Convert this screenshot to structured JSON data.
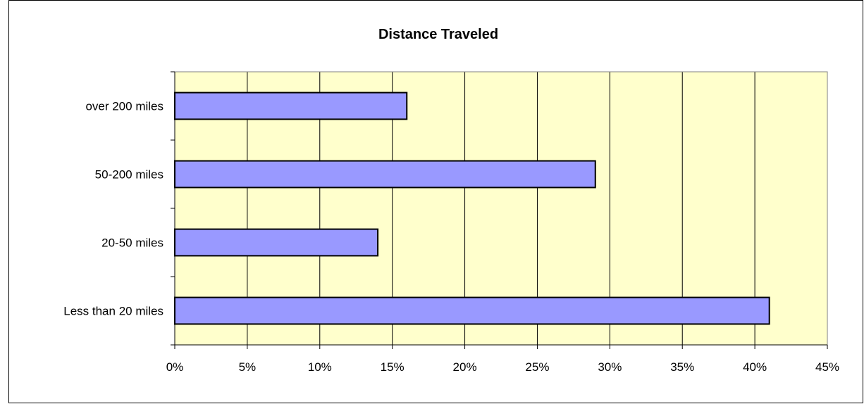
{
  "chart_data": {
    "type": "bar",
    "orientation": "horizontal",
    "title": "Distance Traveled",
    "xlabel": "",
    "ylabel": "",
    "categories": [
      "Less than 20 miles",
      "20-50 miles",
      "50-200 miles",
      "over 200 miles"
    ],
    "values": [
      0.41,
      0.14,
      0.29,
      0.16
    ],
    "value_format": "percent",
    "xlim": [
      0,
      0.45
    ],
    "x_ticks": [
      0,
      0.05,
      0.1,
      0.15,
      0.2,
      0.25,
      0.3,
      0.35,
      0.4,
      0.45
    ],
    "x_tick_labels": [
      "0%",
      "5%",
      "10%",
      "15%",
      "20%",
      "25%",
      "30%",
      "35%",
      "40%",
      "45%"
    ],
    "grid": "vertical",
    "legend": "none",
    "colors": {
      "plot_background": "#ffffcc",
      "bar_fill": "#9999ff",
      "bar_stroke": "#000000",
      "grid": "#000000",
      "axis": "#808080"
    }
  }
}
